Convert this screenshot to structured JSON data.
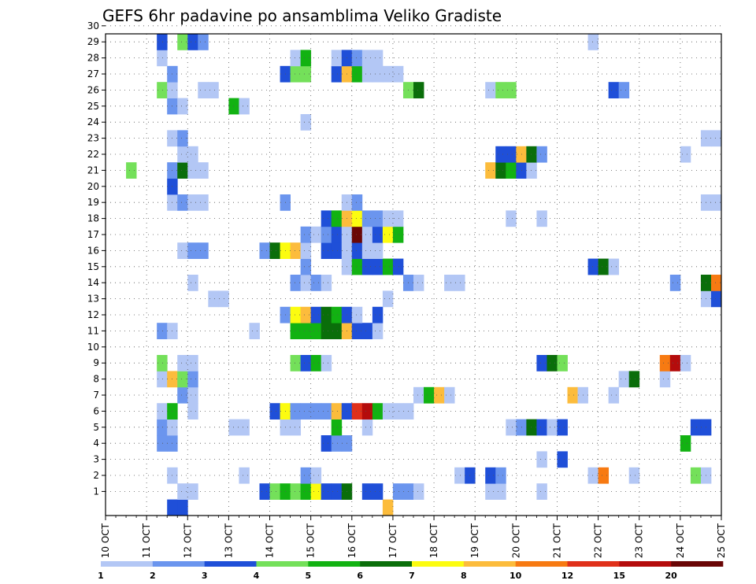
{
  "chart_data": {
    "type": "heatmap",
    "title": "GEFS 6hr padavine po ansamblima Veliko Gradiste",
    "xlabel": "",
    "ylabel": "",
    "x_ticks": [
      "10 OCT",
      "11 OCT",
      "12 OCT",
      "13 OCT",
      "14 OCT",
      "15 OCT",
      "16 OCT",
      "17 OCT",
      "18 OCT",
      "19 OCT",
      "20 OCT",
      "21 OCT",
      "22 OCT",
      "23 OCT",
      "24 OCT",
      "25 OCT"
    ],
    "y_ticks": [
      "1",
      "2",
      "3",
      "4",
      "5",
      "6",
      "7",
      "8",
      "9",
      "10",
      "11",
      "12",
      "13",
      "14",
      "15",
      "16",
      "17",
      "18",
      "19",
      "20",
      "21",
      "22",
      "23",
      "24",
      "25",
      "26",
      "27",
      "28",
      "29",
      "30"
    ],
    "x_range_days": [
      0,
      15
    ],
    "y_range_members": [
      0,
      30
    ],
    "grid": "dotted",
    "colorbar_levels": [
      "1",
      "2",
      "3",
      "4",
      "5",
      "6",
      "7",
      "8",
      "10",
      "12",
      "15",
      "20"
    ],
    "colorbar_colors": [
      "#b3c7f5",
      "#6b95ee",
      "#1f4fd8",
      "#74e05a",
      "#12b212",
      "#0a6e0a",
      "#fcfc10",
      "#fcbc3c",
      "#f77a12",
      "#e0301a",
      "#b40c0c",
      "#6a0606"
    ],
    "cells_format": "[day_offset_from_10_OCT, ensemble_member, color_class_1_to_12]",
    "cells": [
      [
        1.5,
        0,
        3
      ],
      [
        1.75,
        0,
        3
      ],
      [
        6.75,
        0,
        8
      ],
      [
        1.75,
        1,
        1
      ],
      [
        2.0,
        1,
        1
      ],
      [
        3.75,
        1,
        3
      ],
      [
        4.0,
        1,
        4
      ],
      [
        4.25,
        1,
        5
      ],
      [
        4.5,
        1,
        4
      ],
      [
        4.75,
        1,
        5
      ],
      [
        5.0,
        1,
        7
      ],
      [
        5.25,
        1,
        3
      ],
      [
        5.5,
        1,
        3
      ],
      [
        5.75,
        1,
        6
      ],
      [
        6.25,
        1,
        3
      ],
      [
        6.5,
        1,
        3
      ],
      [
        7.0,
        1,
        2
      ],
      [
        7.25,
        1,
        2
      ],
      [
        7.5,
        1,
        1
      ],
      [
        9.25,
        1,
        1
      ],
      [
        9.5,
        1,
        1
      ],
      [
        10.5,
        1,
        1
      ],
      [
        1.5,
        2,
        1
      ],
      [
        3.25,
        2,
        1
      ],
      [
        4.75,
        2,
        2
      ],
      [
        5.0,
        2,
        1
      ],
      [
        8.5,
        2,
        1
      ],
      [
        8.75,
        2,
        3
      ],
      [
        9.25,
        2,
        3
      ],
      [
        9.5,
        2,
        2
      ],
      [
        11.75,
        2,
        1
      ],
      [
        12.0,
        2,
        9
      ],
      [
        12.75,
        2,
        1
      ],
      [
        14.25,
        2,
        4
      ],
      [
        14.5,
        2,
        1
      ],
      [
        10.5,
        3,
        1
      ],
      [
        11.0,
        3,
        3
      ],
      [
        1.25,
        4,
        2
      ],
      [
        1.5,
        4,
        2
      ],
      [
        5.25,
        4,
        3
      ],
      [
        5.5,
        4,
        2
      ],
      [
        5.75,
        4,
        2
      ],
      [
        14.0,
        4,
        5
      ],
      [
        1.25,
        5,
        2
      ],
      [
        1.5,
        5,
        1
      ],
      [
        3.0,
        5,
        1
      ],
      [
        3.25,
        5,
        1
      ],
      [
        4.25,
        5,
        1
      ],
      [
        4.5,
        5,
        1
      ],
      [
        5.5,
        5,
        5
      ],
      [
        6.25,
        5,
        1
      ],
      [
        9.75,
        5,
        1
      ],
      [
        10.0,
        5,
        2
      ],
      [
        10.25,
        5,
        6
      ],
      [
        10.5,
        5,
        3
      ],
      [
        10.75,
        5,
        1
      ],
      [
        11.0,
        5,
        3
      ],
      [
        14.25,
        5,
        3
      ],
      [
        14.5,
        5,
        3
      ],
      [
        1.25,
        6,
        1
      ],
      [
        1.5,
        6,
        5
      ],
      [
        2.0,
        6,
        1
      ],
      [
        4.0,
        6,
        3
      ],
      [
        4.25,
        6,
        7
      ],
      [
        4.5,
        6,
        2
      ],
      [
        4.75,
        6,
        2
      ],
      [
        5.0,
        6,
        2
      ],
      [
        5.25,
        6,
        2
      ],
      [
        5.5,
        6,
        8
      ],
      [
        5.75,
        6,
        3
      ],
      [
        6.0,
        6,
        10
      ],
      [
        6.25,
        6,
        11
      ],
      [
        6.5,
        6,
        5
      ],
      [
        6.75,
        6,
        1
      ],
      [
        7.0,
        6,
        1
      ],
      [
        7.25,
        6,
        1
      ],
      [
        1.75,
        7,
        2
      ],
      [
        2.0,
        7,
        1
      ],
      [
        7.5,
        7,
        1
      ],
      [
        7.75,
        7,
        5
      ],
      [
        8.0,
        7,
        8
      ],
      [
        8.25,
        7,
        1
      ],
      [
        11.25,
        7,
        8
      ],
      [
        11.5,
        7,
        1
      ],
      [
        12.25,
        7,
        1
      ],
      [
        1.25,
        8,
        1
      ],
      [
        1.5,
        8,
        8
      ],
      [
        1.75,
        8,
        4
      ],
      [
        2.0,
        8,
        2
      ],
      [
        12.5,
        8,
        1
      ],
      [
        12.75,
        8,
        6
      ],
      [
        13.5,
        8,
        1
      ],
      [
        1.25,
        9,
        4
      ],
      [
        1.75,
        9,
        1
      ],
      [
        2.0,
        9,
        1
      ],
      [
        4.5,
        9,
        4
      ],
      [
        4.75,
        9,
        3
      ],
      [
        5.0,
        9,
        5
      ],
      [
        5.25,
        9,
        1
      ],
      [
        10.5,
        9,
        3
      ],
      [
        10.75,
        9,
        6
      ],
      [
        11.0,
        9,
        4
      ],
      [
        13.5,
        9,
        9
      ],
      [
        13.75,
        9,
        11
      ],
      [
        14.0,
        9,
        1
      ],
      [
        1.25,
        11,
        2
      ],
      [
        1.5,
        11,
        1
      ],
      [
        3.5,
        11,
        1
      ],
      [
        4.5,
        11,
        5
      ],
      [
        4.75,
        11,
        5
      ],
      [
        5.0,
        11,
        5
      ],
      [
        5.25,
        11,
        6
      ],
      [
        5.5,
        11,
        6
      ],
      [
        5.75,
        11,
        8
      ],
      [
        6.0,
        11,
        3
      ],
      [
        6.25,
        11,
        3
      ],
      [
        6.5,
        11,
        1
      ],
      [
        4.25,
        12,
        2
      ],
      [
        4.5,
        12,
        7
      ],
      [
        4.75,
        12,
        8
      ],
      [
        5.0,
        12,
        3
      ],
      [
        5.25,
        12,
        6
      ],
      [
        5.5,
        12,
        5
      ],
      [
        5.75,
        12,
        3
      ],
      [
        6.0,
        12,
        1
      ],
      [
        6.5,
        12,
        3
      ],
      [
        2.5,
        13,
        1
      ],
      [
        2.75,
        13,
        1
      ],
      [
        6.75,
        13,
        1
      ],
      [
        14.5,
        13,
        1
      ],
      [
        14.75,
        13,
        3
      ],
      [
        2.0,
        14,
        1
      ],
      [
        4.5,
        14,
        2
      ],
      [
        4.75,
        14,
        1
      ],
      [
        5.0,
        14,
        2
      ],
      [
        5.25,
        14,
        1
      ],
      [
        7.25,
        14,
        2
      ],
      [
        7.5,
        14,
        1
      ],
      [
        8.25,
        14,
        1
      ],
      [
        8.5,
        14,
        1
      ],
      [
        13.75,
        14,
        2
      ],
      [
        14.5,
        14,
        6
      ],
      [
        14.75,
        14,
        9
      ],
      [
        4.75,
        15,
        2
      ],
      [
        5.75,
        15,
        1
      ],
      [
        6.0,
        15,
        5
      ],
      [
        6.25,
        15,
        3
      ],
      [
        6.5,
        15,
        3
      ],
      [
        6.75,
        15,
        5
      ],
      [
        7.0,
        15,
        3
      ],
      [
        11.75,
        15,
        3
      ],
      [
        12.0,
        15,
        6
      ],
      [
        12.25,
        15,
        1
      ],
      [
        1.75,
        16,
        1
      ],
      [
        2.0,
        16,
        2
      ],
      [
        2.25,
        16,
        2
      ],
      [
        3.75,
        16,
        2
      ],
      [
        4.0,
        16,
        6
      ],
      [
        4.25,
        16,
        7
      ],
      [
        4.5,
        16,
        8
      ],
      [
        4.75,
        16,
        1
      ],
      [
        5.25,
        16,
        3
      ],
      [
        5.5,
        16,
        3
      ],
      [
        5.75,
        16,
        1
      ],
      [
        6.0,
        16,
        3
      ],
      [
        6.25,
        16,
        1
      ],
      [
        6.5,
        16,
        1
      ],
      [
        4.75,
        17,
        2
      ],
      [
        5.0,
        17,
        1
      ],
      [
        5.25,
        17,
        2
      ],
      [
        5.5,
        17,
        3
      ],
      [
        5.75,
        17,
        1
      ],
      [
        6.0,
        17,
        12
      ],
      [
        6.25,
        17,
        1
      ],
      [
        6.5,
        17,
        3
      ],
      [
        6.75,
        17,
        7
      ],
      [
        7.0,
        17,
        5
      ],
      [
        5.25,
        18,
        3
      ],
      [
        5.5,
        18,
        5
      ],
      [
        5.75,
        18,
        8
      ],
      [
        6.0,
        18,
        7
      ],
      [
        6.25,
        18,
        2
      ],
      [
        6.5,
        18,
        2
      ],
      [
        6.75,
        18,
        1
      ],
      [
        7.0,
        18,
        1
      ],
      [
        9.75,
        18,
        1
      ],
      [
        10.5,
        18,
        1
      ],
      [
        1.5,
        19,
        1
      ],
      [
        1.75,
        19,
        2
      ],
      [
        2.0,
        19,
        1
      ],
      [
        2.25,
        19,
        1
      ],
      [
        4.25,
        19,
        2
      ],
      [
        5.75,
        19,
        1
      ],
      [
        6.0,
        19,
        2
      ],
      [
        14.5,
        19,
        1
      ],
      [
        14.75,
        19,
        1
      ],
      [
        1.5,
        20,
        3
      ],
      [
        0.5,
        21,
        4
      ],
      [
        1.5,
        21,
        2
      ],
      [
        1.75,
        21,
        6
      ],
      [
        2.0,
        21,
        1
      ],
      [
        2.25,
        21,
        1
      ],
      [
        9.25,
        21,
        8
      ],
      [
        9.5,
        21,
        6
      ],
      [
        9.75,
        21,
        5
      ],
      [
        10.0,
        21,
        3
      ],
      [
        10.25,
        21,
        1
      ],
      [
        1.75,
        22,
        1
      ],
      [
        2.0,
        22,
        1
      ],
      [
        9.5,
        22,
        3
      ],
      [
        9.75,
        22,
        3
      ],
      [
        10.0,
        22,
        8
      ],
      [
        10.25,
        22,
        6
      ],
      [
        10.5,
        22,
        2
      ],
      [
        14.0,
        22,
        1
      ],
      [
        1.5,
        23,
        1
      ],
      [
        1.75,
        23,
        2
      ],
      [
        14.5,
        23,
        1
      ],
      [
        14.75,
        23,
        1
      ],
      [
        4.75,
        24,
        1
      ],
      [
        1.5,
        25,
        2
      ],
      [
        1.75,
        25,
        1
      ],
      [
        3.0,
        25,
        5
      ],
      [
        3.25,
        25,
        1
      ],
      [
        1.25,
        26,
        4
      ],
      [
        1.5,
        26,
        1
      ],
      [
        2.25,
        26,
        1
      ],
      [
        2.5,
        26,
        1
      ],
      [
        7.25,
        26,
        4
      ],
      [
        7.5,
        26,
        6
      ],
      [
        9.25,
        26,
        1
      ],
      [
        9.5,
        26,
        4
      ],
      [
        9.75,
        26,
        4
      ],
      [
        12.25,
        26,
        3
      ],
      [
        12.5,
        26,
        2
      ],
      [
        1.5,
        27,
        2
      ],
      [
        4.25,
        27,
        3
      ],
      [
        4.5,
        27,
        4
      ],
      [
        4.75,
        27,
        4
      ],
      [
        5.5,
        27,
        3
      ],
      [
        5.75,
        27,
        8
      ],
      [
        6.0,
        27,
        5
      ],
      [
        6.25,
        27,
        1
      ],
      [
        6.5,
        27,
        1
      ],
      [
        6.75,
        27,
        1
      ],
      [
        7.0,
        27,
        1
      ],
      [
        1.25,
        28,
        1
      ],
      [
        4.5,
        28,
        1
      ],
      [
        4.75,
        28,
        5
      ],
      [
        5.5,
        28,
        1
      ],
      [
        5.75,
        28,
        3
      ],
      [
        6.0,
        28,
        2
      ],
      [
        6.25,
        28,
        1
      ],
      [
        6.5,
        28,
        1
      ],
      [
        1.25,
        29,
        3
      ],
      [
        1.75,
        29,
        4
      ],
      [
        2.0,
        29,
        3
      ],
      [
        2.25,
        29,
        2
      ],
      [
        11.75,
        29,
        1
      ],
      [
        1.5,
        30,
        2
      ],
      [
        2.5,
        30,
        2
      ],
      [
        2.75,
        30,
        1
      ]
    ]
  }
}
